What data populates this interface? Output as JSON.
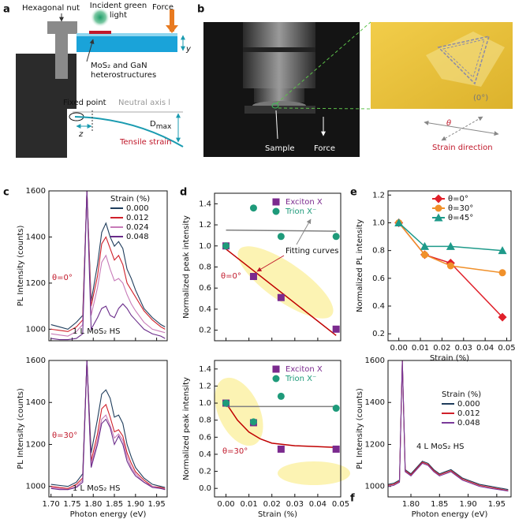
{
  "panels": {
    "letters": [
      "a",
      "b",
      "c",
      "d",
      "e",
      "f"
    ],
    "a": {
      "hex_nut": "Hexagonal nut",
      "incident": [
        "Incident green",
        "light"
      ],
      "force": "Force",
      "hetero": [
        "MoS₂ and GaN",
        "heterostructures"
      ],
      "y": "y",
      "fixed_point": "Fixed point",
      "neutral_axis": "Neutral axis l",
      "z": "z",
      "dmax": [
        "D",
        "max"
      ],
      "tensile": "Tensile strain"
    },
    "b": {
      "sample": "Sample",
      "force": "Force",
      "zero": "(0°)",
      "theta": "θ",
      "strain_direction": "Strain direction"
    }
  },
  "chart_data": [
    {
      "type": "line",
      "ylabel": "PL Intensity (counts)",
      "legend_title": "Strain (%)",
      "x": [
        1.7,
        1.72,
        1.74,
        1.76,
        1.775,
        1.785,
        1.795,
        1.81,
        1.82,
        1.83,
        1.84,
        1.85,
        1.86,
        1.87,
        1.88,
        1.89,
        1.9,
        1.92,
        1.94,
        1.96,
        1.97
      ],
      "series": [
        {
          "name": "0.000",
          "color": "#1f3d5c",
          "values": [
            1020,
            1010,
            1000,
            1030,
            1060,
            1600,
            1120,
            1280,
            1420,
            1460,
            1400,
            1360,
            1380,
            1350,
            1260,
            1220,
            1170,
            1090,
            1050,
            1020,
            1010
          ]
        },
        {
          "name": "0.012",
          "color": "#d0202a",
          "values": [
            1000,
            995,
            990,
            1010,
            1040,
            1600,
            1100,
            1230,
            1370,
            1400,
            1350,
            1300,
            1320,
            1280,
            1200,
            1170,
            1140,
            1080,
            1040,
            1010,
            1000
          ]
        },
        {
          "name": "0.024",
          "color": "#c77ab8",
          "values": [
            980,
            975,
            970,
            990,
            1020,
            1600,
            1060,
            1180,
            1290,
            1320,
            1260,
            1210,
            1220,
            1200,
            1150,
            1110,
            1080,
            1030,
            1000,
            990,
            985
          ]
        },
        {
          "name": "0.048",
          "color": "#6a2c8a",
          "values": [
            960,
            955,
            955,
            960,
            980,
            1600,
            1000,
            1050,
            1090,
            1100,
            1060,
            1050,
            1090,
            1110,
            1090,
            1060,
            1040,
            1000,
            980,
            970,
            960
          ]
        }
      ],
      "xlim": [
        1.695,
        1.975
      ],
      "xticks": [
        1.7,
        1.75,
        1.8,
        1.85,
        1.9,
        1.95
      ],
      "xticklabels": false,
      "ylim": [
        950,
        1600
      ],
      "yticks": [
        1000,
        1200,
        1400,
        1600
      ],
      "annotations": [
        {
          "text": "θ=0°",
          "color": "#c0182a"
        },
        {
          "text": "1 L MoS₂ HS",
          "color": "#111111"
        }
      ]
    },
    {
      "type": "line",
      "ylabel": "PL Intensity (counts)",
      "xlabel": "Photon energy (eV)",
      "x": [
        1.7,
        1.72,
        1.74,
        1.76,
        1.775,
        1.785,
        1.795,
        1.81,
        1.82,
        1.83,
        1.84,
        1.85,
        1.86,
        1.87,
        1.88,
        1.89,
        1.9,
        1.92,
        1.94,
        1.96,
        1.97
      ],
      "series": [
        {
          "color": "#1f3d5c",
          "values": [
            1010,
            1005,
            1000,
            1020,
            1060,
            1600,
            1160,
            1320,
            1440,
            1460,
            1420,
            1330,
            1340,
            1300,
            1200,
            1140,
            1090,
            1040,
            1010,
            1000,
            995
          ]
        },
        {
          "color": "#d0202a",
          "values": [
            1000,
            995,
            990,
            1010,
            1040,
            1600,
            1120,
            1250,
            1370,
            1390,
            1330,
            1260,
            1270,
            1240,
            1160,
            1110,
            1070,
            1030,
            1000,
            995,
            990
          ]
        },
        {
          "color": "#c77ab8",
          "values": [
            995,
            990,
            985,
            1000,
            1030,
            1600,
            1100,
            1220,
            1320,
            1340,
            1290,
            1230,
            1250,
            1220,
            1140,
            1090,
            1060,
            1020,
            1000,
            990,
            985
          ]
        },
        {
          "color": "#6a2c8a",
          "values": [
            990,
            985,
            985,
            995,
            1020,
            1600,
            1090,
            1200,
            1300,
            1320,
            1280,
            1200,
            1240,
            1200,
            1120,
            1080,
            1050,
            1020,
            995,
            990,
            985
          ]
        }
      ],
      "xlim": [
        1.695,
        1.975
      ],
      "xticks": [
        {
          "value": 1.7,
          "label": "1.70"
        },
        1.75,
        {
          "value": 1.8,
          "label": "1.80"
        },
        1.85,
        {
          "value": 1.9,
          "label": "1.90"
        },
        1.95
      ],
      "ylim": [
        950,
        1600
      ],
      "yticks": [
        1000,
        1200,
        1400,
        1600
      ],
      "annotations": [
        {
          "text": "θ=30°",
          "color": "#c0182a"
        },
        {
          "text": "1 L MoS₂ HS",
          "color": "#111111"
        }
      ]
    },
    {
      "type": "scatter",
      "ylabel": "Normalized peak intensity",
      "x": [
        0,
        0.012,
        0.024,
        0.048
      ],
      "series": [
        {
          "name": "Exciton X",
          "color": "#7b2a8e",
          "marker": "square",
          "values": [
            1.0,
            0.71,
            0.51,
            0.21
          ]
        },
        {
          "name": "Trion X⁻",
          "color": "#1e9a7a",
          "marker": "circle",
          "values": [
            1.0,
            1.36,
            1.09,
            1.09
          ]
        }
      ],
      "fits": [
        {
          "color": "#c00000",
          "x": [
            0,
            0.048
          ],
          "values": [
            0.97,
            0.15
          ]
        },
        {
          "color": "#808080",
          "x": [
            0,
            0.048
          ],
          "values": [
            1.15,
            1.14
          ]
        }
      ],
      "xlim": [
        -0.005,
        0.05
      ],
      "xticks": [
        0,
        0.01,
        0.02,
        0.03,
        0.04,
        0.05
      ],
      "xticklabels": false,
      "ylim": [
        0.1,
        1.5
      ],
      "yticks": [
        0.2,
        0.4,
        0.6,
        0.8,
        {
          "value": 1.0,
          "label": "1.0"
        },
        1.2,
        1.4
      ],
      "annotations": [
        {
          "text": "θ=0°",
          "color": "#c0182a"
        },
        {
          "text": "Fitting curves",
          "color": "#111111"
        }
      ]
    },
    {
      "type": "scatter",
      "ylabel": "Normalized peak intensity",
      "xlabel": "Strain (%)",
      "x": [
        0,
        0.012,
        0.024,
        0.048
      ],
      "series": [
        {
          "name": "Exciton X",
          "color": "#7b2a8e",
          "marker": "square",
          "values": [
            1.0,
            0.77,
            0.46,
            0.46
          ]
        },
        {
          "name": "Trion X⁻",
          "color": "#1e9a7a",
          "marker": "circle",
          "values": [
            1.0,
            0.78,
            1.08,
            0.94
          ]
        }
      ],
      "fits": [
        {
          "color": "#c00000",
          "x": [
            0,
            0.005,
            0.01,
            0.015,
            0.02,
            0.03,
            0.04,
            0.048
          ],
          "values": [
            1.0,
            0.8,
            0.66,
            0.58,
            0.53,
            0.5,
            0.49,
            0.48
          ]
        },
        {
          "color": "#808080",
          "x": [
            0,
            0.048
          ],
          "values": [
            0.96,
            0.96
          ]
        }
      ],
      "xlim": [
        -0.005,
        0.05
      ],
      "xticks": [
        {
          "value": 0,
          "label": "0.00"
        },
        {
          "value": 0.01,
          "label": "0.01"
        },
        {
          "value": 0.02,
          "label": "0.02"
        },
        {
          "value": 0.03,
          "label": "0.03"
        },
        {
          "value": 0.04,
          "label": "0.04"
        },
        {
          "value": 0.05,
          "label": "0.05"
        }
      ],
      "ylim": [
        -0.1,
        1.5
      ],
      "yticks": [
        {
          "value": 0,
          "label": "0.0"
        },
        0.2,
        0.4,
        0.6,
        0.8,
        {
          "value": 1.0,
          "label": "1.0"
        },
        1.2,
        1.4
      ],
      "annotations": [
        {
          "text": "θ=30°",
          "color": "#c0182a"
        }
      ]
    },
    {
      "type": "line",
      "ylabel": "Normalized PL intensity",
      "xlabel": "Strain (%)",
      "x": [
        0,
        0.012,
        0.024,
        0.048
      ],
      "series": [
        {
          "name": "θ=0°",
          "color": "#e0202a",
          "marker": "diamond",
          "values": [
            1.0,
            0.77,
            0.71,
            0.32
          ]
        },
        {
          "name": "θ=30°",
          "color": "#f0902a",
          "marker": "circle",
          "values": [
            1.0,
            0.77,
            0.69,
            0.64
          ]
        },
        {
          "name": "θ=45°",
          "color": "#1e9a8a",
          "marker": "triangle",
          "values": [
            1.0,
            0.83,
            0.83,
            0.8
          ]
        }
      ],
      "xlim": [
        -0.005,
        0.052
      ],
      "xticks": [
        {
          "value": 0,
          "label": "0.00"
        },
        {
          "value": 0.01,
          "label": "0.01"
        },
        {
          "value": 0.02,
          "label": "0.02"
        },
        {
          "value": 0.03,
          "label": "0.03"
        },
        {
          "value": 0.04,
          "label": "0.04"
        },
        {
          "value": 0.05,
          "label": "0.05"
        }
      ],
      "ylim": [
        0.15,
        1.23
      ],
      "yticks": [
        0.2,
        0.4,
        0.6,
        0.8,
        {
          "value": 1.0,
          "label": "1.0"
        },
        1.2
      ]
    },
    {
      "type": "line",
      "ylabel": "PL Intensity (counts)",
      "xlabel": "Photon energy (eV)",
      "legend_title": "Strain (%)",
      "x": [
        1.76,
        1.77,
        1.78,
        1.785,
        1.79,
        1.8,
        1.81,
        1.82,
        1.83,
        1.84,
        1.85,
        1.86,
        1.87,
        1.88,
        1.89,
        1.9,
        1.92,
        1.94,
        1.96,
        1.97
      ],
      "series": [
        {
          "name": "0.000",
          "color": "#1f3d5c",
          "values": [
            1010,
            1015,
            1030,
            1600,
            1080,
            1060,
            1090,
            1120,
            1110,
            1080,
            1060,
            1070,
            1080,
            1060,
            1040,
            1030,
            1010,
            1000,
            990,
            985
          ]
        },
        {
          "name": "0.012",
          "color": "#d0202a",
          "values": [
            1005,
            1010,
            1025,
            1600,
            1075,
            1055,
            1085,
            1115,
            1105,
            1075,
            1055,
            1065,
            1075,
            1055,
            1035,
            1025,
            1005,
            995,
            985,
            980
          ]
        },
        {
          "name": "0.048",
          "color": "#7a3a9a",
          "values": [
            1000,
            1005,
            1020,
            1600,
            1070,
            1050,
            1080,
            1110,
            1100,
            1070,
            1050,
            1060,
            1070,
            1050,
            1030,
            1020,
            1000,
            990,
            982,
            978
          ]
        }
      ],
      "xlim": [
        1.76,
        1.975
      ],
      "xticks": [
        {
          "value": 1.8,
          "label": "1.80"
        },
        1.85,
        {
          "value": 1.9,
          "label": "1.90"
        },
        1.95
      ],
      "ylim": [
        950,
        1600
      ],
      "yticks": [
        1000,
        1200,
        1400,
        1600
      ],
      "annotations": [
        {
          "text": "4 L MoS₂ HS",
          "color": "#111111"
        }
      ]
    }
  ]
}
